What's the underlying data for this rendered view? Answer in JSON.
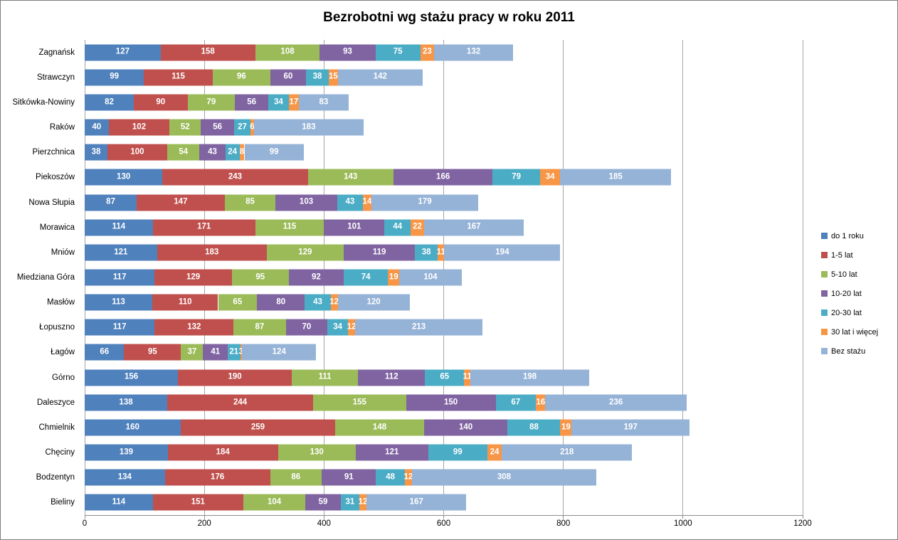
{
  "chart_data": {
    "type": "bar",
    "subtype": "horizontal-stacked",
    "title": "Bezrobotni wg stażu pracy w roku 2011",
    "xlabel": "",
    "ylabel": "",
    "x_axis": {
      "min": 0,
      "max": 1200,
      "tick_step": 200,
      "ticks": [
        0,
        200,
        400,
        600,
        800,
        1000,
        1200
      ]
    },
    "gridlines": "vertical",
    "legend_position": "right",
    "value_labels": "white, bold, centered in segments",
    "categories": [
      "Zagnańsk",
      "Strawczyn",
      "Sitkówka-Nowiny",
      "Raków",
      "Pierzchnica",
      "Piekoszów",
      "Nowa Słupia",
      "Morawica",
      "Mniów",
      "Miedziana Góra",
      "Masłów",
      "Łopuszno",
      "Łagów",
      "Górno",
      "Daleszyce",
      "Chmielnik",
      "Chęciny",
      "Bodzentyn",
      "Bieliny"
    ],
    "series": [
      {
        "name": "do 1 roku",
        "color": "#4F81BD",
        "values": [
          127,
          99,
          82,
          40,
          38,
          130,
          87,
          114,
          121,
          117,
          113,
          117,
          66,
          156,
          138,
          160,
          139,
          134,
          114
        ]
      },
      {
        "name": "1-5 lat",
        "color": "#C0504D",
        "values": [
          158,
          115,
          90,
          102,
          100,
          243,
          147,
          171,
          183,
          129,
          110,
          132,
          95,
          190,
          244,
          259,
          184,
          176,
          151
        ]
      },
      {
        "name": "5-10 lat",
        "color": "#9BBB59",
        "values": [
          108,
          96,
          79,
          52,
          54,
          143,
          85,
          115,
          129,
          95,
          65,
          87,
          37,
          111,
          155,
          148,
          130,
          86,
          104
        ]
      },
      {
        "name": "10-20 lat",
        "color": "#8064A2",
        "values": [
          93,
          60,
          56,
          56,
          43,
          166,
          103,
          101,
          119,
          92,
          80,
          70,
          41,
          112,
          150,
          140,
          121,
          91,
          59
        ]
      },
      {
        "name": "20-30 lat",
        "color": "#4BACC6",
        "values": [
          75,
          38,
          34,
          27,
          24,
          79,
          43,
          44,
          38,
          74,
          43,
          34,
          21,
          65,
          67,
          88,
          99,
          48,
          31
        ]
      },
      {
        "name": "30 lat i więcej",
        "color": "#F79646",
        "values": [
          23,
          15,
          17,
          6,
          8,
          34,
          14,
          22,
          11,
          19,
          12,
          12,
          3,
          11,
          16,
          19,
          24,
          12,
          12
        ]
      },
      {
        "name": "Bez stażu",
        "color": "#95B3D7",
        "values": [
          132,
          142,
          83,
          183,
          99,
          185,
          179,
          167,
          194,
          104,
          120,
          213,
          124,
          198,
          236,
          197,
          218,
          308,
          167
        ]
      }
    ],
    "colors": {
      "background": "#FFFFFF",
      "border": "#7F7F7F",
      "gridline": "#A6A6A6",
      "axis_line": "#8C8C8C",
      "title_text": "#000000",
      "axis_text": "#000000",
      "value_label_text": "#FFFFFF"
    }
  }
}
